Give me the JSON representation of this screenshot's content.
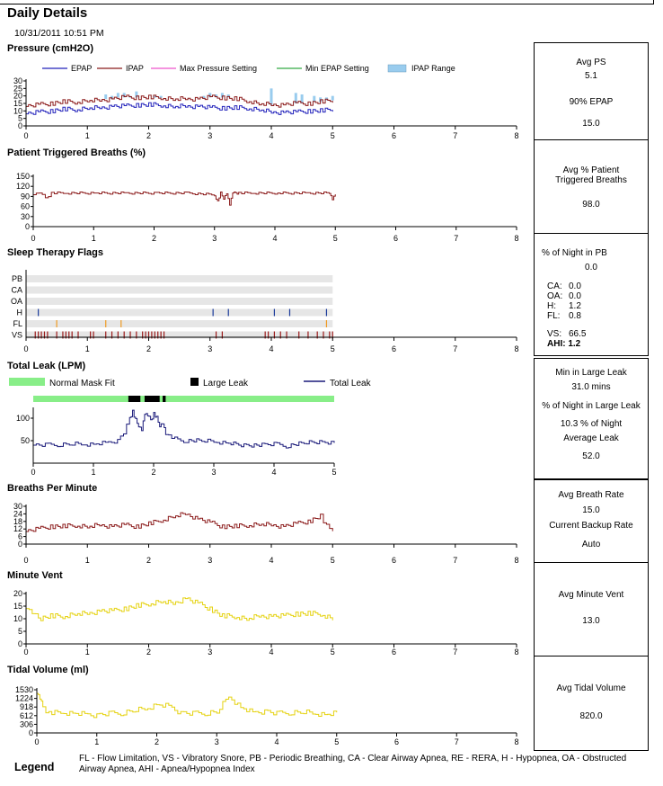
{
  "page": {
    "title": "Daily Details",
    "date": "10/31/2011 10:51 PM"
  },
  "colors": {
    "epap": "#2222bb",
    "ipap": "#8b1a1a",
    "maxp": "#ee55cc",
    "minepap": "#33aa44",
    "range": "#99ccee",
    "bpm": "#8b1a1a",
    "mv": "#e5d210",
    "leak": "#1a1a7a",
    "normal": "#88ee88",
    "large": "#000000",
    "flagbg": "#e6e6e6"
  },
  "sections": {
    "pressure": "Pressure (cmH2O)",
    "ptb": "Patient Triggered Breaths (%)",
    "flags": "Sleep Therapy Flags",
    "leak": "Total Leak (LPM)",
    "bpm": "Breaths Per Minute",
    "mv": "Minute Vent",
    "tv": "Tidal Volume (ml)"
  },
  "stats": {
    "pressure": {
      "avg_ps_label": "Avg PS",
      "avg_ps": "5.1",
      "epap90_label": "90% EPAP",
      "epap90": "15.0"
    },
    "ptb": {
      "label_1": "Avg % Patient",
      "label_2": "Triggered Breaths",
      "value": "98.0"
    },
    "flags": {
      "pb_label": "% of Night in PB",
      "pb": "0.0",
      "ca_label": "CA:",
      "ca": "0.0",
      "oa_label": "OA:",
      "oa": "0.0",
      "h_label": "H:",
      "h": "1.2",
      "fl_label": "FL:",
      "fl": "0.8",
      "vs_label": "VS:",
      "vs": "66.5",
      "ahi_label": "AHI:",
      "ahi": "1.2"
    },
    "leak": {
      "min_label": "Min in Large Leak",
      "min": "31.0 mins",
      "pct_label": "% of Night in Large Leak",
      "pct": "10.3 % of Night",
      "avg_label": "Average Leak",
      "avg": "52.0"
    },
    "bpm": {
      "avg_label": "Avg Breath Rate",
      "avg": "15.0",
      "backup_label": "Current Backup Rate",
      "backup": "Auto"
    },
    "mv": {
      "label": "Avg Minute Vent",
      "value": "13.0"
    },
    "tv": {
      "label": "Avg Tidal Volume",
      "value": "820.0"
    }
  },
  "legend": {
    "title": "Legend",
    "text": "FL - Flow Limitation, VS - Vibratory Snore, PB - Periodic Breathing, CA - Clear Airway Apnea, RE - RERA, H - Hypopnea, OA - Obstructed Airway Apnea, AHI - Apnea/Hypopnea Index"
  },
  "chart_data": [
    {
      "id": "pressure",
      "type": "line",
      "title": "Pressure (cmH2O)",
      "xlim": [
        0,
        8
      ],
      "xticks": [
        "0",
        "1",
        "2",
        "3",
        "4",
        "5",
        "6",
        "7",
        "8"
      ],
      "ylim": [
        0,
        30
      ],
      "yticks": [
        0,
        5,
        10,
        15,
        20,
        25,
        30
      ],
      "legend": [
        "EPAP",
        "IPAP",
        "Max Pressure Setting",
        "Min EPAP Setting",
        "IPAP Range"
      ],
      "series": [
        {
          "name": "EPAP",
          "x": [
            0,
            0.2,
            0.4,
            0.6,
            0.8,
            1.0,
            1.2,
            1.4,
            1.6,
            1.8,
            2.0,
            2.2,
            2.4,
            2.6,
            2.8,
            3.0,
            3.2,
            3.4,
            3.6,
            3.8,
            4.0,
            4.2,
            4.4,
            4.6,
            4.8,
            5.0
          ],
          "y": [
            8,
            9,
            10,
            11,
            11,
            12,
            12,
            13,
            13,
            14,
            14,
            14,
            13,
            13,
            13,
            12,
            12,
            12,
            12,
            11,
            9,
            9,
            9,
            10,
            10,
            11
          ]
        },
        {
          "name": "IPAP",
          "x": [
            0,
            0.2,
            0.4,
            0.6,
            0.8,
            1.0,
            1.2,
            1.4,
            1.6,
            1.8,
            2.0,
            2.2,
            2.4,
            2.6,
            2.8,
            3.0,
            3.2,
            3.4,
            3.6,
            3.8,
            4.0,
            4.2,
            4.4,
            4.6,
            4.8,
            5.0
          ],
          "y": [
            13,
            14,
            15,
            16,
            16,
            17,
            17,
            18,
            19,
            19,
            19,
            19,
            18,
            18,
            18,
            19,
            19,
            18,
            17,
            15,
            14,
            14,
            15,
            15,
            16,
            17
          ]
        },
        {
          "name": "IPAP Range",
          "x": [
            1.3,
            1.4,
            1.5,
            1.6,
            1.7,
            1.8,
            2.1,
            2.2,
            2.9,
            3.0,
            3.1,
            3.2,
            3.3,
            4.0,
            4.4,
            4.5,
            4.7,
            4.8,
            4.9,
            5.0
          ],
          "y": [
            21,
            20,
            22,
            22,
            20,
            23,
            20,
            20,
            20,
            22,
            21,
            22,
            21,
            25,
            22,
            21,
            20,
            19,
            19,
            20
          ]
        }
      ]
    },
    {
      "id": "ptb",
      "type": "line",
      "title": "Patient Triggered Breaths (%)",
      "xlim": [
        0,
        8
      ],
      "xticks": [
        "0",
        "1",
        "2",
        "3",
        "4",
        "5",
        "6",
        "7",
        "8"
      ],
      "ylim": [
        0,
        150
      ],
      "yticks": [
        0,
        30,
        60,
        90,
        120,
        150
      ],
      "series": [
        {
          "name": "",
          "x": [
            0,
            0.1,
            0.2,
            0.3,
            0.5,
            1.0,
            1.5,
            2.0,
            2.5,
            3.0,
            3.05,
            3.1,
            3.15,
            3.2,
            3.25,
            3.3,
            3.35,
            3.4,
            3.6,
            4.0,
            4.5,
            4.9,
            4.95,
            5.0
          ],
          "y": [
            95,
            100,
            85,
            100,
            100,
            100,
            100,
            100,
            100,
            95,
            75,
            100,
            85,
            100,
            65,
            100,
            100,
            100,
            100,
            100,
            100,
            100,
            80,
            95
          ]
        }
      ]
    },
    {
      "id": "flags",
      "type": "scatter",
      "title": "Sleep Therapy Flags",
      "xlim": [
        0,
        8
      ],
      "xticks": [
        "0",
        "1",
        "2",
        "3",
        "4",
        "5",
        "6",
        "7",
        "8"
      ],
      "rows": [
        "PB",
        "CA",
        "OA",
        "H",
        "FL",
        "VS"
      ],
      "events": {
        "PB": [],
        "CA": [],
        "OA": [],
        "H": [
          0.2,
          3.05,
          3.3,
          4.05,
          4.3,
          4.9
        ],
        "FL": [
          0.5,
          1.3,
          1.55,
          4.9
        ],
        "VS": [
          0.15,
          0.2,
          0.25,
          0.3,
          0.35,
          0.5,
          0.6,
          0.65,
          0.7,
          0.75,
          0.85,
          1.05,
          1.1,
          1.3,
          1.4,
          1.5,
          1.6,
          1.7,
          1.8,
          1.9,
          1.95,
          2.0,
          2.05,
          2.1,
          2.15,
          2.2,
          2.25,
          3.1,
          3.2,
          3.9,
          3.95,
          4.05,
          4.15,
          4.25,
          4.45,
          4.6,
          4.75,
          4.85,
          4.95,
          5.0
        ]
      }
    },
    {
      "id": "leak",
      "type": "line",
      "title": "Total Leak (LPM)",
      "xlim": [
        0,
        5
      ],
      "xticks": [
        "0",
        "1",
        "2",
        "3",
        "4",
        "5"
      ],
      "ylim": [
        0,
        120
      ],
      "yticks": [
        50,
        100
      ],
      "legend": [
        "Normal Mask Fit",
        "Large Leak",
        "Total Leak"
      ],
      "large_leak_spans": [
        [
          1.58,
          1.78
        ],
        [
          1.85,
          2.1
        ],
        [
          2.15,
          2.2
        ]
      ],
      "series": [
        {
          "name": "Total Leak",
          "x": [
            0,
            0.2,
            0.4,
            0.6,
            0.8,
            1.0,
            1.2,
            1.4,
            1.5,
            1.6,
            1.65,
            1.7,
            1.75,
            1.8,
            1.85,
            1.9,
            1.95,
            2.0,
            2.05,
            2.1,
            2.15,
            2.2,
            2.3,
            2.5,
            2.8,
            3.0,
            3.2,
            3.5,
            3.8,
            4.0,
            4.2,
            4.5,
            4.8,
            5.0
          ],
          "y": [
            40,
            40,
            41,
            43,
            42,
            42,
            45,
            50,
            65,
            100,
            115,
            95,
            85,
            75,
            110,
            105,
            95,
            110,
            100,
            85,
            90,
            65,
            55,
            50,
            50,
            48,
            45,
            40,
            40,
            42,
            38,
            45,
            48,
            45
          ]
        }
      ]
    },
    {
      "id": "bpm",
      "type": "line",
      "title": "Breaths Per Minute",
      "xlim": [
        0,
        8
      ],
      "xticks": [
        "0",
        "1",
        "2",
        "3",
        "4",
        "5",
        "6",
        "7",
        "8"
      ],
      "ylim": [
        0,
        30
      ],
      "yticks": [
        0,
        6,
        12,
        18,
        24,
        30
      ],
      "series": [
        {
          "name": "",
          "x": [
            0,
            0.2,
            0.4,
            0.6,
            0.8,
            1.0,
            1.2,
            1.4,
            1.6,
            1.8,
            2.0,
            2.2,
            2.4,
            2.6,
            2.8,
            3.0,
            3.2,
            3.4,
            3.6,
            3.8,
            4.0,
            4.2,
            4.4,
            4.6,
            4.8,
            4.9,
            5.0
          ],
          "y": [
            10,
            12,
            14,
            14,
            15,
            14,
            15,
            14,
            15,
            14,
            16,
            19,
            22,
            24,
            20,
            17,
            14,
            14,
            15,
            16,
            15,
            14,
            16,
            18,
            22,
            14,
            12
          ]
        }
      ]
    },
    {
      "id": "mv",
      "type": "line",
      "title": "Minute Vent",
      "xlim": [
        0,
        8
      ],
      "xticks": [
        "0",
        "1",
        "2",
        "3",
        "4",
        "5",
        "6",
        "7",
        "8"
      ],
      "ylim": [
        0,
        20
      ],
      "yticks": [
        0,
        5,
        10,
        15,
        20
      ],
      "series": [
        {
          "name": "",
          "x": [
            0,
            0.1,
            0.2,
            0.4,
            0.6,
            0.8,
            1.0,
            1.2,
            1.4,
            1.6,
            1.8,
            2.0,
            2.2,
            2.4,
            2.6,
            2.8,
            3.0,
            3.2,
            3.4,
            3.6,
            3.8,
            4.0,
            4.2,
            4.4,
            4.6,
            4.8,
            5.0
          ],
          "y": [
            14,
            12,
            10,
            11,
            11,
            12,
            12,
            13,
            13,
            14,
            15,
            16,
            17,
            16,
            18,
            16,
            14,
            11,
            11,
            10,
            11,
            11,
            11,
            12,
            12,
            12,
            10
          ]
        }
      ]
    },
    {
      "id": "tv",
      "type": "line",
      "title": "Tidal Volume (ml)",
      "xlim": [
        0,
        8
      ],
      "xticks": [
        "0",
        "1",
        "2",
        "3",
        "4",
        "5",
        "6",
        "7",
        "8"
      ],
      "ylim": [
        0,
        1530
      ],
      "yticks": [
        0,
        306,
        612,
        918,
        1224,
        1530
      ],
      "ytick_labels": [
        "0",
        "306",
        "612",
        "918",
        "1224",
        "1530"
      ],
      "series": [
        {
          "name": "",
          "x": [
            0,
            0.05,
            0.1,
            0.2,
            0.4,
            0.6,
            0.8,
            1.0,
            1.2,
            1.4,
            1.6,
            1.8,
            2.0,
            2.2,
            2.4,
            2.6,
            2.8,
            3.0,
            3.2,
            3.4,
            3.6,
            3.8,
            4.0,
            4.2,
            4.4,
            4.6,
            4.8,
            5.0
          ],
          "y": [
            1400,
            1200,
            900,
            700,
            720,
            700,
            660,
            620,
            680,
            700,
            800,
            850,
            1000,
            950,
            700,
            680,
            700,
            760,
            1300,
            900,
            720,
            760,
            680,
            720,
            750,
            700,
            650,
            700
          ]
        }
      ]
    }
  ]
}
